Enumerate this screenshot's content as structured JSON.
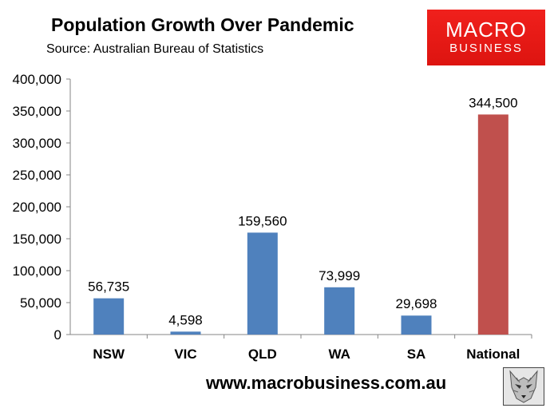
{
  "header": {
    "title": "Population Growth Over Pandemic",
    "source": "Source: Australian Bureau of Statistics"
  },
  "logo": {
    "line1": "MACRO",
    "line2": "BUSINESS"
  },
  "footer": {
    "url": "www.macrobusiness.com.au"
  },
  "colors": {
    "state_bar": "#4f81bd",
    "national_bar": "#c0504d",
    "logo_bg": "#e8191a"
  },
  "chart_data": {
    "type": "bar",
    "title": "Population Growth Over Pandemic",
    "categories": [
      "NSW",
      "VIC",
      "QLD",
      "WA",
      "SA",
      "National"
    ],
    "values": [
      56735,
      4598,
      159560,
      73999,
      29698,
      344500
    ],
    "data_labels": [
      "56,735",
      "4,598",
      "159,560",
      "73,999",
      "29,698",
      "344,500"
    ],
    "ylim": [
      0,
      400000
    ],
    "yticks": [
      0,
      50000,
      100000,
      150000,
      200000,
      250000,
      300000,
      350000,
      400000
    ],
    "ytick_labels": [
      "0",
      "50,000",
      "100,000",
      "150,000",
      "200,000",
      "250,000",
      "300,000",
      "350,000",
      "400,000"
    ],
    "grid": false,
    "legend": "none"
  }
}
